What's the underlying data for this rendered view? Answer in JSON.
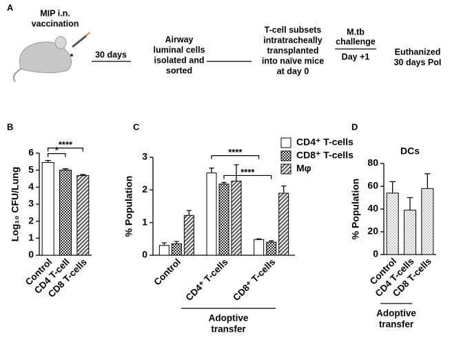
{
  "schematic": {
    "panel": "A",
    "steps": [
      [
        "MIP i.n.",
        "vaccination"
      ],
      [
        "30 days"
      ],
      [
        "Airway",
        "luminal cells",
        "isolated and",
        "sorted"
      ],
      [
        "T-cell subsets",
        "intratracheally",
        "transplanted",
        "into naïve mice",
        "at day 0"
      ],
      [
        "M.tb",
        "challenge"
      ],
      [
        "Day +1"
      ],
      [
        "Euthanized",
        "30 days PoI"
      ]
    ]
  },
  "chart_data": [
    {
      "type": "bar",
      "panel": "B",
      "ylabel": "Log₁₀ CFU/Lung",
      "categories": [
        "Control",
        "CD4 T-cell",
        "CD8 T-cells"
      ],
      "values": [
        5.45,
        5.0,
        4.68
      ],
      "errors": [
        0.12,
        0.08,
        0.06
      ],
      "fills": [
        "white",
        "checker",
        "hatch"
      ],
      "ylim": [
        0,
        6
      ],
      "yticks": [
        0,
        1,
        2,
        3,
        4,
        5,
        6
      ],
      "significance": [
        {
          "from": 0,
          "to": 1,
          "label": "*"
        },
        {
          "from": 0,
          "to": 2,
          "label": "****"
        }
      ]
    },
    {
      "type": "grouped-bar",
      "panel": "C",
      "ylabel": "% Population",
      "categories": [
        "Control",
        "CD4⁺ T-cells",
        "CD8⁺ T-cells"
      ],
      "series": [
        {
          "name": "CD4⁺ T-cells",
          "fill": "white",
          "values": [
            0.3,
            2.52,
            0.48
          ],
          "errors": [
            0.08,
            0.15,
            0.02
          ]
        },
        {
          "name": "CD8⁺ T-cells",
          "fill": "checker",
          "values": [
            0.35,
            2.18,
            0.4
          ],
          "errors": [
            0.07,
            0.05,
            0.04
          ]
        },
        {
          "name": "Mφ",
          "fill": "hatch",
          "values": [
            1.22,
            2.27,
            1.9
          ],
          "errors": [
            0.15,
            0.5,
            0.22
          ]
        }
      ],
      "ylim": [
        0,
        3
      ],
      "yticks": [
        0,
        1,
        2,
        3
      ],
      "significance": [
        {
          "from": [
            1,
            1
          ],
          "to": [
            2,
            1
          ],
          "label": "****"
        },
        {
          "from": [
            1,
            0
          ],
          "to": [
            2,
            0
          ],
          "label": "****"
        }
      ],
      "bracket_label": [
        "Adoptive",
        "transfer"
      ]
    },
    {
      "type": "bar",
      "panel": "D",
      "title": "DCs",
      "ylabel": "% Population",
      "categories": [
        "Control",
        "CD4 T-cells",
        "CD8 T-cells"
      ],
      "values": [
        54,
        39,
        58
      ],
      "errors": [
        10,
        11,
        13
      ],
      "fills": [
        "dots",
        "dots",
        "dots"
      ],
      "ylim": [
        0,
        80
      ],
      "yticks": [
        0,
        20,
        40,
        60,
        80
      ],
      "bracket_label": [
        "Adoptive",
        "transfer"
      ]
    }
  ]
}
